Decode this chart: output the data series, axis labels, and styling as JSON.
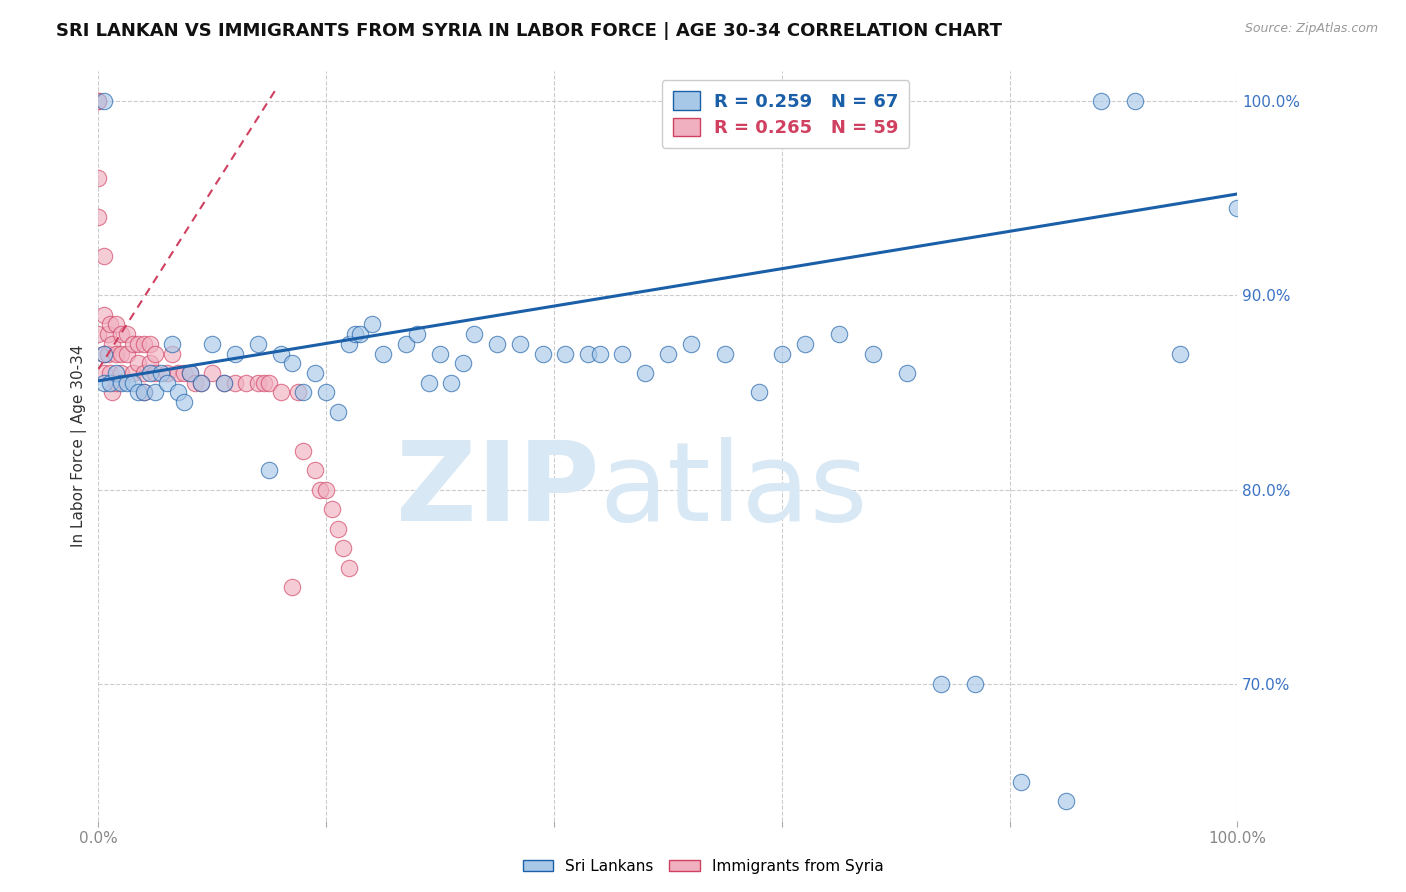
{
  "title": "SRI LANKAN VS IMMIGRANTS FROM SYRIA IN LABOR FORCE | AGE 30-34 CORRELATION CHART",
  "source": "Source: ZipAtlas.com",
  "ylabel": "In Labor Force | Age 30-34",
  "xlim": [
    0.0,
    1.0
  ],
  "ylim": [
    0.63,
    1.015
  ],
  "yticks": [
    0.7,
    0.8,
    0.9,
    1.0
  ],
  "ytick_labels": [
    "70.0%",
    "80.0%",
    "90.0%",
    "100.0%"
  ],
  "xticks": [
    0.0,
    0.2,
    0.4,
    0.6,
    0.8,
    1.0
  ],
  "xtick_labels": [
    "0.0%",
    "",
    "",
    "",
    "",
    "100.0%"
  ],
  "blue_R": 0.259,
  "blue_N": 67,
  "pink_R": 0.265,
  "pink_N": 59,
  "blue_color": "#a8c8e8",
  "pink_color": "#f0b0c0",
  "blue_line_color": "#1a5fa8",
  "pink_line_color": "#d04060",
  "blue_scatter_x": [
    0.005,
    0.005,
    0.005,
    0.01,
    0.015,
    0.02,
    0.025,
    0.03,
    0.035,
    0.04,
    0.045,
    0.05,
    0.055,
    0.06,
    0.065,
    0.07,
    0.075,
    0.08,
    0.09,
    0.1,
    0.11,
    0.12,
    0.14,
    0.15,
    0.16,
    0.17,
    0.18,
    0.19,
    0.2,
    0.21,
    0.22,
    0.225,
    0.23,
    0.24,
    0.25,
    0.27,
    0.28,
    0.29,
    0.3,
    0.31,
    0.32,
    0.33,
    0.35,
    0.37,
    0.39,
    0.41,
    0.43,
    0.44,
    0.46,
    0.48,
    0.5,
    0.52,
    0.55,
    0.58,
    0.6,
    0.62,
    0.65,
    0.68,
    0.71,
    0.74,
    0.77,
    0.81,
    0.85,
    0.88,
    0.91,
    0.95,
    1.0
  ],
  "blue_scatter_y": [
    0.87,
    0.855,
    1.0,
    0.855,
    0.86,
    0.855,
    0.855,
    0.855,
    0.85,
    0.85,
    0.86,
    0.85,
    0.86,
    0.855,
    0.875,
    0.85,
    0.845,
    0.86,
    0.855,
    0.875,
    0.855,
    0.87,
    0.875,
    0.81,
    0.87,
    0.865,
    0.85,
    0.86,
    0.85,
    0.84,
    0.875,
    0.88,
    0.88,
    0.885,
    0.87,
    0.875,
    0.88,
    0.855,
    0.87,
    0.855,
    0.865,
    0.88,
    0.875,
    0.875,
    0.87,
    0.87,
    0.87,
    0.87,
    0.87,
    0.86,
    0.87,
    0.875,
    0.87,
    0.85,
    0.87,
    0.875,
    0.88,
    0.87,
    0.86,
    0.7,
    0.7,
    0.65,
    0.64,
    1.0,
    1.0,
    0.87,
    0.945
  ],
  "pink_scatter_x": [
    0.0,
    0.0,
    0.0,
    0.0,
    0.0,
    0.005,
    0.005,
    0.005,
    0.005,
    0.008,
    0.008,
    0.01,
    0.01,
    0.012,
    0.012,
    0.015,
    0.015,
    0.015,
    0.02,
    0.02,
    0.02,
    0.025,
    0.025,
    0.03,
    0.03,
    0.035,
    0.035,
    0.04,
    0.04,
    0.04,
    0.045,
    0.045,
    0.05,
    0.05,
    0.06,
    0.065,
    0.07,
    0.075,
    0.08,
    0.085,
    0.09,
    0.1,
    0.11,
    0.12,
    0.13,
    0.14,
    0.145,
    0.15,
    0.16,
    0.17,
    0.175,
    0.18,
    0.19,
    0.195,
    0.2,
    0.205,
    0.21,
    0.215,
    0.22
  ],
  "pink_scatter_y": [
    1.0,
    1.0,
    0.96,
    0.94,
    0.88,
    0.92,
    0.89,
    0.87,
    0.86,
    0.88,
    0.87,
    0.885,
    0.86,
    0.875,
    0.85,
    0.885,
    0.87,
    0.855,
    0.88,
    0.87,
    0.86,
    0.88,
    0.87,
    0.875,
    0.86,
    0.875,
    0.865,
    0.875,
    0.86,
    0.85,
    0.875,
    0.865,
    0.87,
    0.86,
    0.86,
    0.87,
    0.86,
    0.86,
    0.86,
    0.855,
    0.855,
    0.86,
    0.855,
    0.855,
    0.855,
    0.855,
    0.855,
    0.855,
    0.85,
    0.75,
    0.85,
    0.82,
    0.81,
    0.8,
    0.8,
    0.79,
    0.78,
    0.77,
    0.76
  ],
  "blue_line_x": [
    0.0,
    1.0
  ],
  "blue_line_y_start": 0.856,
  "blue_line_y_end": 0.952,
  "pink_line_x": [
    0.0,
    0.155
  ],
  "pink_line_y_start": 0.862,
  "pink_line_y_end": 1.005,
  "watermark_zip": "ZIP",
  "watermark_atlas": "atlas",
  "watermark_color": "#d8e8f5",
  "legend_blue_label": "Sri Lankans",
  "legend_pink_label": "Immigrants from Syria",
  "background_color": "#ffffff",
  "grid_color": "#cccccc",
  "title_fontsize": 13,
  "axis_label_fontsize": 11,
  "tick_fontsize": 11,
  "tick_color_y": "#3a72c4",
  "tick_color_x": "#888888"
}
